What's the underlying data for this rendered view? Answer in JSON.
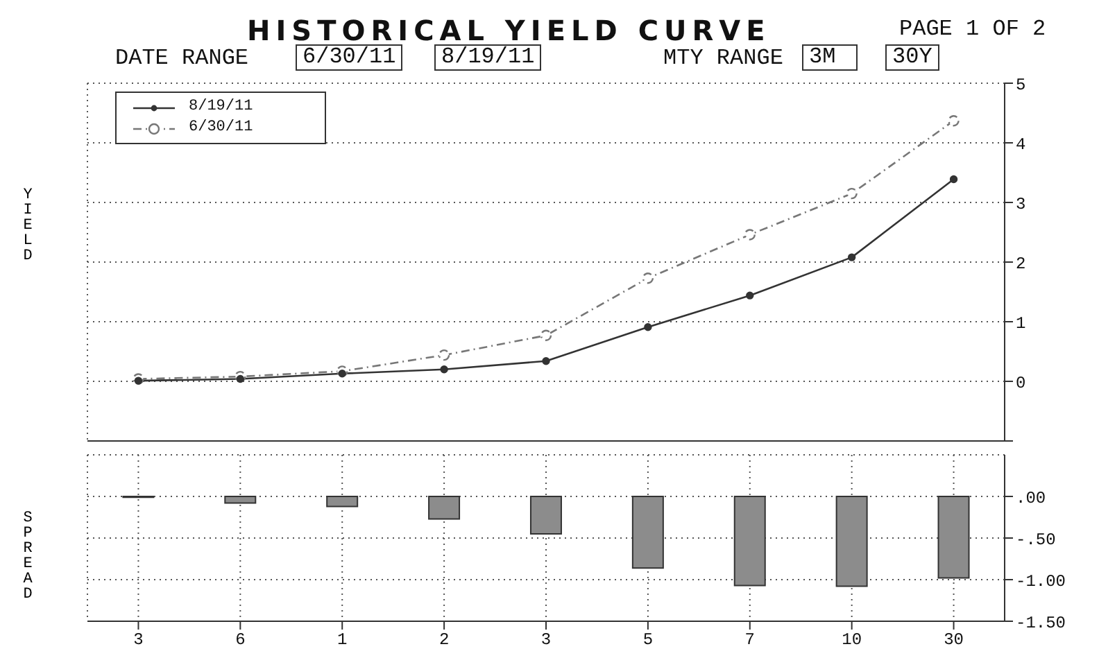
{
  "chart_data": [
    {
      "type": "line",
      "title": "HISTORICAL YIELD CURVE",
      "ylabel": "YIELD",
      "annotations": [
        "PAGE 1 OF 2",
        "DATE RANGE",
        "6/30/11",
        "8/19/11",
        "MTY RANGE",
        "3M",
        "30Y"
      ],
      "categories": [
        "3",
        "6",
        "1",
        "2",
        "3",
        "5",
        "7",
        "10",
        "30"
      ],
      "series": [
        {
          "name": "8/19/11",
          "color": "#333333",
          "marker": "circle",
          "line_style": "solid",
          "values": [
            0.01,
            0.04,
            0.13,
            0.2,
            0.34,
            0.91,
            1.44,
            2.08,
            3.39
          ]
        },
        {
          "name": "6/30/11",
          "color": "#777777",
          "marker": "circle",
          "line_style": "dashed",
          "values": [
            0.04,
            0.08,
            0.17,
            0.44,
            0.77,
            1.73,
            2.46,
            3.15,
            4.37
          ]
        }
      ],
      "ylim": [
        -1,
        5
      ],
      "yticks": [
        {
          "value": -1,
          "label": null
        },
        0,
        1,
        2,
        3,
        4,
        5
      ],
      "grid": true,
      "legend": "top left",
      "tick_labels": "y"
    },
    {
      "type": "bar",
      "ylabel": "SPREAD",
      "categories": [
        "3",
        "6",
        "1",
        "2",
        "3",
        "5",
        "7",
        "10",
        "30"
      ],
      "series": [
        {
          "color": "#8c8c8c",
          "values": [
            -0.01,
            -0.08,
            -0.12,
            -0.27,
            -0.45,
            -0.86,
            -1.07,
            -1.08,
            -0.98
          ]
        }
      ],
      "ylim": [
        -1.5,
        0.5
      ],
      "yticks": [
        {
          "value": 0,
          "label": ".00"
        },
        {
          "value": -0.5,
          "label": "-.50"
        },
        {
          "value": -1,
          "label": "-1.00"
        },
        {
          "value": -1.5,
          "label": "-1.50"
        }
      ],
      "grid": true
    }
  ]
}
